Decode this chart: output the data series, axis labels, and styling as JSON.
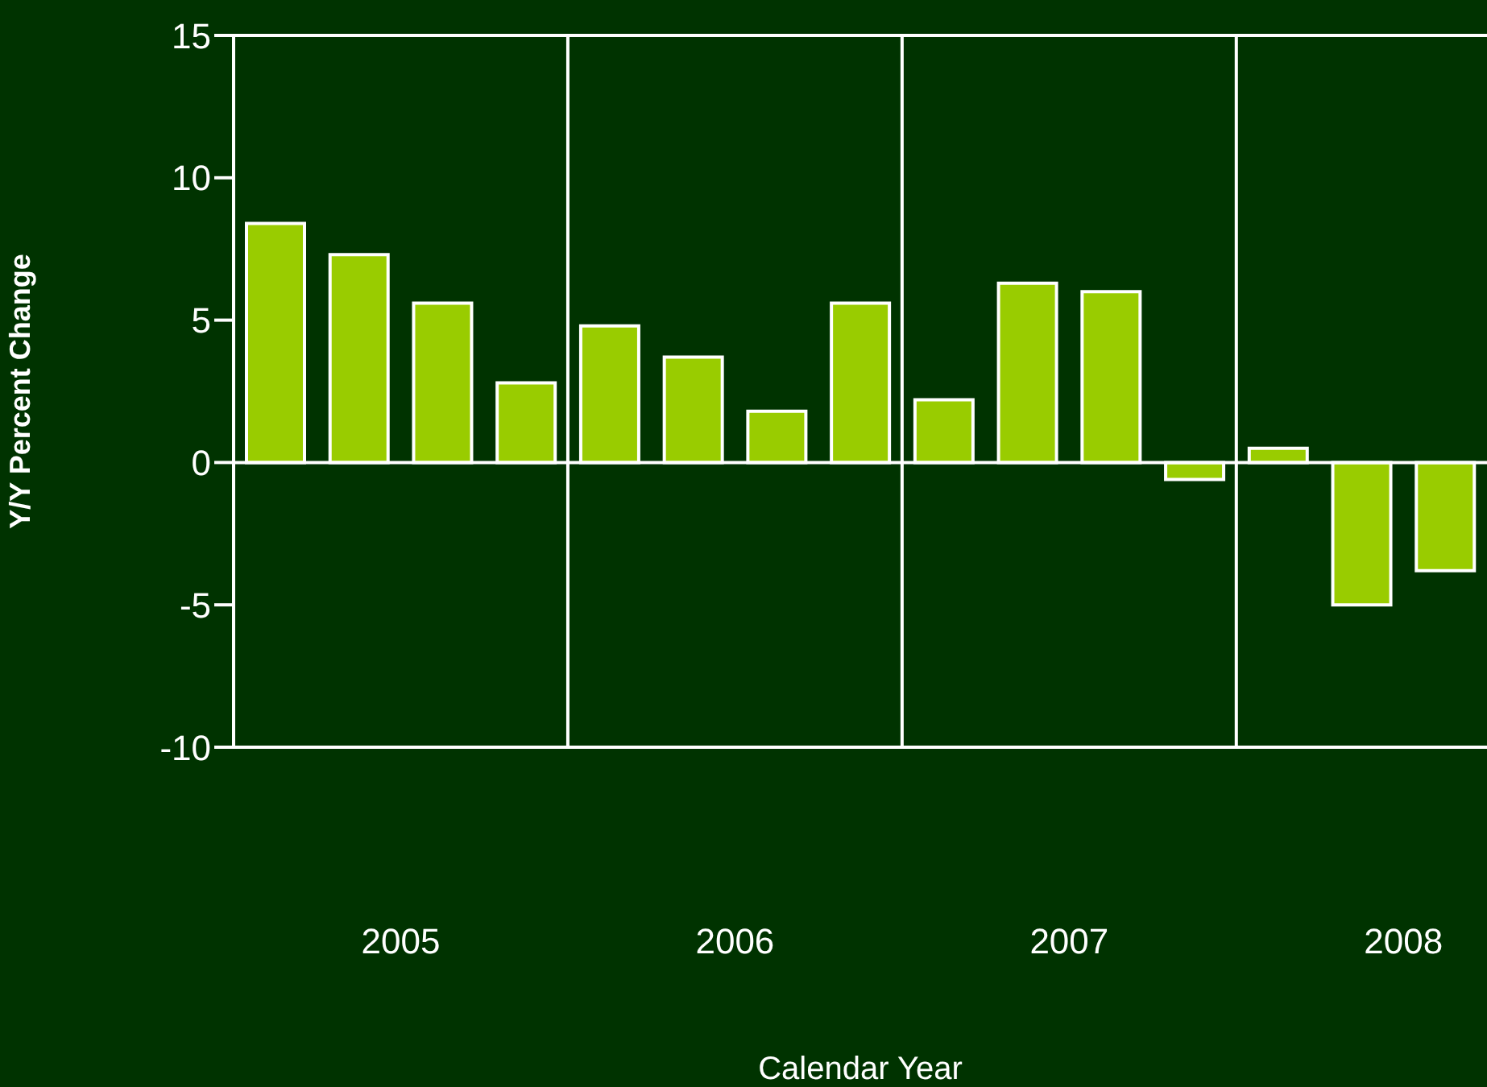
{
  "chart_data": {
    "type": "bar",
    "xlabel": "Calendar Year",
    "ylabel": "Y/Y Percent Change",
    "categories": [
      null,
      "2005",
      null,
      null,
      null,
      "2006",
      null,
      null,
      null,
      "2007",
      null,
      null,
      null,
      "2008",
      null
    ],
    "values": [
      8.4,
      7.3,
      5.6,
      2.8,
      4.8,
      3.7,
      1.8,
      5.6,
      2.2,
      6.3,
      6.0,
      -0.6,
      0.5,
      -5.0,
      -3.8
    ],
    "color": "#99cc00",
    "ylim": [
      -10,
      15
    ],
    "yticks": [
      -10,
      -5,
      0,
      5,
      10,
      15
    ],
    "grid": "x",
    "ref_lines": [
      {
        "axis": "y",
        "value": 0
      }
    ]
  }
}
